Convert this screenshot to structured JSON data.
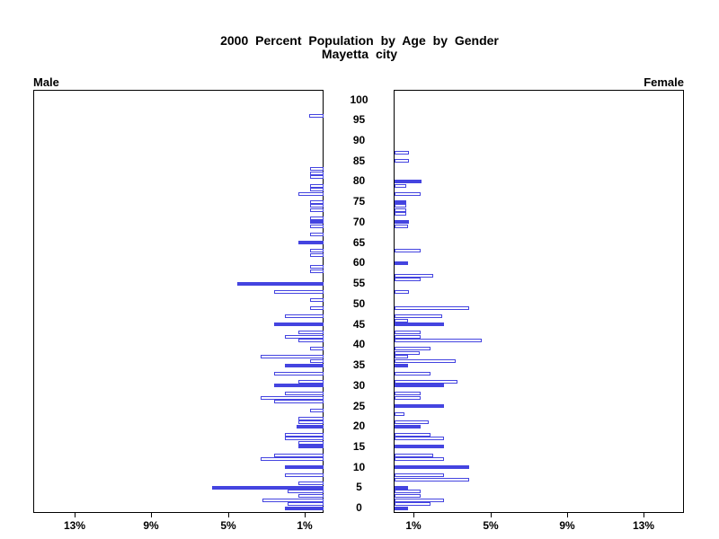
{
  "title": "2000 Percent Population by Age by Gender",
  "subtitle": "Mayetta city",
  "left_header": "Male",
  "right_header": "Female",
  "colors": {
    "bar_blue": "#4444e0",
    "axis_black": "#000000",
    "background": "#ffffff"
  },
  "chart_data": {
    "type": "bar",
    "variant": "population-pyramid",
    "title": "2000 Percent Population by Age by Gender",
    "subtitle": "Mayetta city",
    "unit": "percent of total population",
    "grid": false,
    "legend": false,
    "age_axis": {
      "min": 0,
      "max": 100,
      "tick_interval": 5,
      "ticks": [
        0,
        5,
        10,
        15,
        20,
        25,
        30,
        35,
        40,
        45,
        50,
        55,
        60,
        65,
        70,
        75,
        80,
        85,
        90,
        95,
        100
      ]
    },
    "pct_axis": {
      "max": 15,
      "ticks": [
        1,
        5,
        9,
        13
      ],
      "tick_labels": [
        "1%",
        "5%",
        "9%",
        "13%"
      ]
    },
    "note_solid_bars": "bars at 5-year ages drawn solid blue; other ages hollow",
    "series": [
      {
        "name": "Male",
        "side": "left",
        "bars": [
          {
            "age": 96,
            "pct": 0.75,
            "solid": false
          },
          {
            "age": 83,
            "pct": 0.7,
            "solid": false
          },
          {
            "age": 82,
            "pct": 0.7,
            "solid": false
          },
          {
            "age": 81,
            "pct": 0.7,
            "solid": false
          },
          {
            "age": 79,
            "pct": 0.7,
            "solid": false
          },
          {
            "age": 78,
            "pct": 0.7,
            "solid": false
          },
          {
            "age": 77,
            "pct": 1.3,
            "solid": false
          },
          {
            "age": 75,
            "pct": 0.7,
            "solid": false
          },
          {
            "age": 74,
            "pct": 0.7,
            "solid": false
          },
          {
            "age": 73,
            "pct": 0.7,
            "solid": false
          },
          {
            "age": 71,
            "pct": 0.7,
            "solid": false
          },
          {
            "age": 70,
            "pct": 0.7,
            "solid": true
          },
          {
            "age": 69,
            "pct": 0.7,
            "solid": false
          },
          {
            "age": 67,
            "pct": 0.7,
            "solid": false
          },
          {
            "age": 65,
            "pct": 1.3,
            "solid": true
          },
          {
            "age": 63,
            "pct": 0.7,
            "solid": false
          },
          {
            "age": 62,
            "pct": 0.7,
            "solid": false
          },
          {
            "age": 59,
            "pct": 0.7,
            "solid": false
          },
          {
            "age": 58,
            "pct": 0.7,
            "solid": false
          },
          {
            "age": 55,
            "pct": 4.5,
            "solid": true
          },
          {
            "age": 53,
            "pct": 2.6,
            "solid": false
          },
          {
            "age": 51,
            "pct": 0.7,
            "solid": false
          },
          {
            "age": 49,
            "pct": 0.7,
            "solid": false
          },
          {
            "age": 47,
            "pct": 2.0,
            "solid": false
          },
          {
            "age": 45,
            "pct": 2.6,
            "solid": true
          },
          {
            "age": 43,
            "pct": 1.3,
            "solid": false
          },
          {
            "age": 42,
            "pct": 2.0,
            "solid": false
          },
          {
            "age": 41,
            "pct": 1.3,
            "solid": false
          },
          {
            "age": 39,
            "pct": 0.7,
            "solid": false
          },
          {
            "age": 37,
            "pct": 3.3,
            "solid": false
          },
          {
            "age": 36,
            "pct": 0.7,
            "solid": false
          },
          {
            "age": 35,
            "pct": 2.0,
            "solid": true
          },
          {
            "age": 33,
            "pct": 2.6,
            "solid": false
          },
          {
            "age": 31,
            "pct": 1.3,
            "solid": false
          },
          {
            "age": 30,
            "pct": 2.6,
            "solid": true
          },
          {
            "age": 28,
            "pct": 2.0,
            "solid": false
          },
          {
            "age": 27,
            "pct": 3.3,
            "solid": false
          },
          {
            "age": 26,
            "pct": 2.6,
            "solid": false
          },
          {
            "age": 24,
            "pct": 0.7,
            "solid": false
          },
          {
            "age": 22,
            "pct": 1.3,
            "solid": false
          },
          {
            "age": 21,
            "pct": 1.3,
            "solid": false
          },
          {
            "age": 20,
            "pct": 1.4,
            "solid": true
          },
          {
            "age": 18,
            "pct": 2.0,
            "solid": false
          },
          {
            "age": 17,
            "pct": 2.0,
            "solid": false
          },
          {
            "age": 16,
            "pct": 1.3,
            "solid": false
          },
          {
            "age": 15,
            "pct": 1.3,
            "solid": true
          },
          {
            "age": 13,
            "pct": 2.6,
            "solid": false
          },
          {
            "age": 12,
            "pct": 3.3,
            "solid": false
          },
          {
            "age": 10,
            "pct": 2.0,
            "solid": true
          },
          {
            "age": 8,
            "pct": 2.0,
            "solid": false
          },
          {
            "age": 6,
            "pct": 1.3,
            "solid": false
          },
          {
            "age": 5,
            "pct": 5.8,
            "solid": true
          },
          {
            "age": 4,
            "pct": 1.9,
            "solid": false
          },
          {
            "age": 3,
            "pct": 1.3,
            "solid": false
          },
          {
            "age": 2,
            "pct": 3.2,
            "solid": false
          },
          {
            "age": 1,
            "pct": 1.9,
            "solid": false
          },
          {
            "age": 0,
            "pct": 2.0,
            "solid": true
          }
        ]
      },
      {
        "name": "Female",
        "side": "right",
        "bars": [
          {
            "age": 87,
            "pct": 0.75,
            "solid": false
          },
          {
            "age": 85,
            "pct": 0.75,
            "solid": false
          },
          {
            "age": 80,
            "pct": 1.4,
            "solid": true
          },
          {
            "age": 79,
            "pct": 0.6,
            "solid": false
          },
          {
            "age": 77,
            "pct": 1.35,
            "solid": false
          },
          {
            "age": 75,
            "pct": 0.6,
            "solid": true
          },
          {
            "age": 74,
            "pct": 0.6,
            "solid": false
          },
          {
            "age": 73,
            "pct": 0.6,
            "solid": false
          },
          {
            "age": 72,
            "pct": 0.6,
            "solid": false
          },
          {
            "age": 70,
            "pct": 0.75,
            "solid": true
          },
          {
            "age": 69,
            "pct": 0.7,
            "solid": false
          },
          {
            "age": 63,
            "pct": 1.35,
            "solid": false
          },
          {
            "age": 60,
            "pct": 0.7,
            "solid": true
          },
          {
            "age": 57,
            "pct": 2.0,
            "solid": false
          },
          {
            "age": 56,
            "pct": 1.35,
            "solid": false
          },
          {
            "age": 53,
            "pct": 0.75,
            "solid": false
          },
          {
            "age": 49,
            "pct": 3.9,
            "solid": false
          },
          {
            "age": 47,
            "pct": 2.5,
            "solid": false
          },
          {
            "age": 46,
            "pct": 0.7,
            "solid": false
          },
          {
            "age": 45,
            "pct": 2.6,
            "solid": true
          },
          {
            "age": 43,
            "pct": 1.35,
            "solid": false
          },
          {
            "age": 42,
            "pct": 1.35,
            "solid": false
          },
          {
            "age": 41,
            "pct": 4.55,
            "solid": false
          },
          {
            "age": 39,
            "pct": 1.9,
            "solid": false
          },
          {
            "age": 38,
            "pct": 1.3,
            "solid": false
          },
          {
            "age": 37,
            "pct": 0.7,
            "solid": false
          },
          {
            "age": 36,
            "pct": 3.2,
            "solid": false
          },
          {
            "age": 35,
            "pct": 0.7,
            "solid": true
          },
          {
            "age": 33,
            "pct": 1.9,
            "solid": false
          },
          {
            "age": 31,
            "pct": 3.3,
            "solid": false
          },
          {
            "age": 30,
            "pct": 2.6,
            "solid": true
          },
          {
            "age": 28,
            "pct": 1.35,
            "solid": false
          },
          {
            "age": 27,
            "pct": 1.35,
            "solid": false
          },
          {
            "age": 25,
            "pct": 2.6,
            "solid": true
          },
          {
            "age": 23,
            "pct": 0.5,
            "solid": false
          },
          {
            "age": 21,
            "pct": 1.8,
            "solid": false
          },
          {
            "age": 20,
            "pct": 1.35,
            "solid": true
          },
          {
            "age": 18,
            "pct": 1.9,
            "solid": false
          },
          {
            "age": 17,
            "pct": 2.6,
            "solid": false
          },
          {
            "age": 15,
            "pct": 2.6,
            "solid": true
          },
          {
            "age": 13,
            "pct": 2.0,
            "solid": false
          },
          {
            "age": 12,
            "pct": 2.6,
            "solid": false
          },
          {
            "age": 10,
            "pct": 3.9,
            "solid": true
          },
          {
            "age": 8,
            "pct": 2.6,
            "solid": false
          },
          {
            "age": 7,
            "pct": 3.9,
            "solid": false
          },
          {
            "age": 5,
            "pct": 0.7,
            "solid": true
          },
          {
            "age": 4,
            "pct": 1.35,
            "solid": false
          },
          {
            "age": 3,
            "pct": 1.35,
            "solid": false
          },
          {
            "age": 2,
            "pct": 2.6,
            "solid": false
          },
          {
            "age": 1,
            "pct": 1.9,
            "solid": false
          },
          {
            "age": 0,
            "pct": 0.7,
            "solid": true
          }
        ]
      }
    ]
  }
}
